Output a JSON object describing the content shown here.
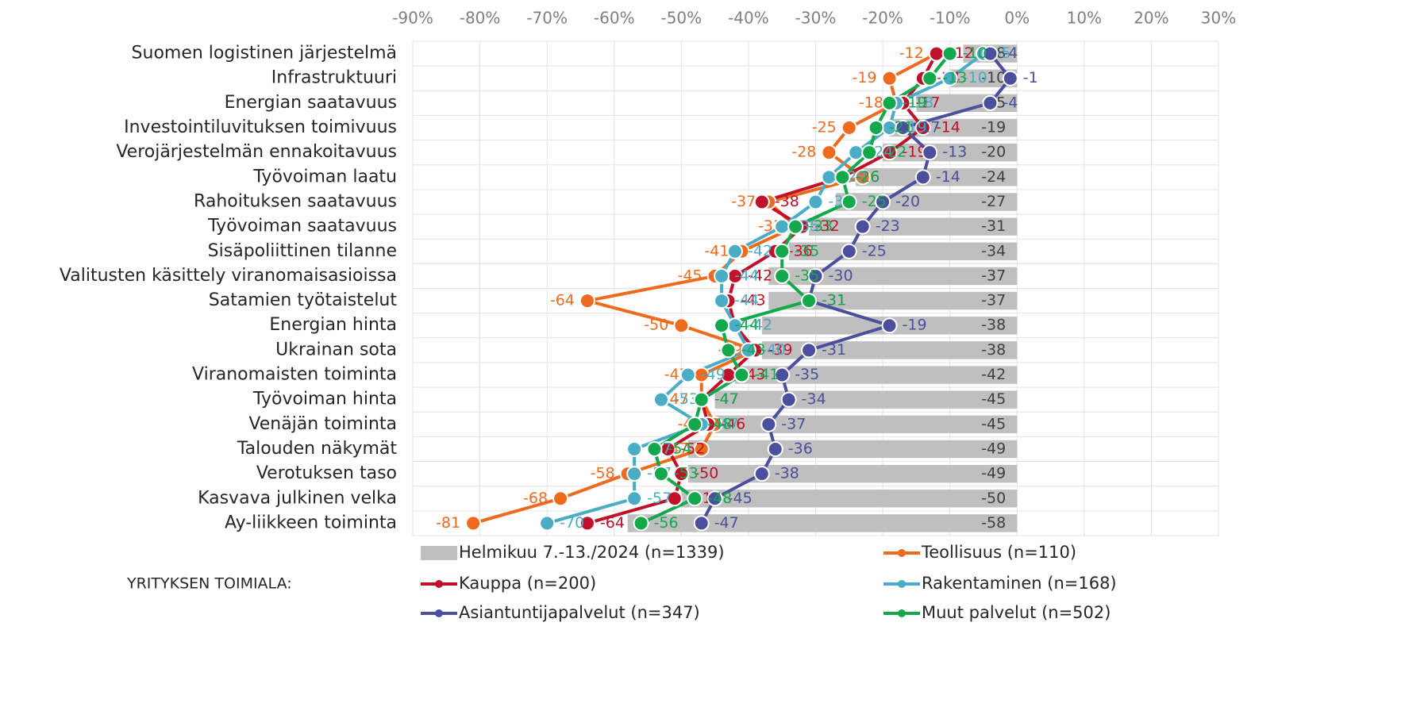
{
  "chart_data": {
    "type": "line",
    "categories": [
      "Suomen logistinen järjestelmä",
      "Infrastruktuuri",
      "Energian saatavuus",
      "Investointiluvituksen toimivuus",
      "Verojärjestelmän ennakoitavuus",
      "Työvoiman laatu",
      "Rahoituksen saatavuus",
      "Työvoiman saatavuus",
      "Sisäpoliittinen tilanne",
      "Valitusten käsittely viranomaisasioissa",
      "Satamien työtaistelut",
      "Energian hinta",
      "Ukrainan sota",
      "Viranomaisten toiminta",
      "Työvoiman hinta",
      "Venäjän toiminta",
      "Talouden näkymät",
      "Verotuksen taso",
      "Kasvava julkinen velka",
      "Ay-liikkeen toiminta"
    ],
    "legend_title": "YRITYKSEN TOIMIALA:",
    "series": [
      {
        "name": "Helmikuu 7.-13./2024 (n=1339)",
        "type": "bar",
        "color": "#bfbfbf",
        "label_color": "#404040",
        "values": [
          -8,
          -10,
          -15,
          -19,
          -20,
          -24,
          -27,
          -31,
          -34,
          -37,
          -37,
          -38,
          -38,
          -42,
          -45,
          -45,
          -49,
          -49,
          -50,
          -58
        ]
      },
      {
        "name": "Teollisuus (n=110)",
        "type": "line",
        "color": "#ee6a1f",
        "values": [
          -12,
          -19,
          -18,
          -25,
          -28,
          -23,
          -37,
          -33,
          -41,
          -45,
          -64,
          -50,
          -39,
          -47,
          -47,
          -45,
          -47,
          -58,
          -68,
          -81
        ]
      },
      {
        "name": "Kauppa (n=200)",
        "type": "line",
        "color": "#c0112a",
        "values": [
          -12,
          -14,
          -17,
          -14,
          -19,
          -26,
          -38,
          -32,
          -36,
          -42,
          -43,
          -42,
          -39,
          -43,
          -47,
          -46,
          -52,
          -50,
          -51,
          -64
        ]
      },
      {
        "name": "Rakentaminen (n=168)",
        "type": "line",
        "color": "#4bacc6",
        "values": [
          -5,
          -10,
          -18,
          -19,
          -24,
          -28,
          -30,
          -35,
          -42,
          -44,
          -44,
          -42,
          -40,
          -49,
          -53,
          -47,
          -57,
          -57,
          -57,
          -70
        ]
      },
      {
        "name": "Asiantuntijapalvelut (n=347)",
        "type": "line",
        "color": "#4a4f9e",
        "values": [
          -4,
          -1,
          -4,
          -17,
          -13,
          -14,
          -20,
          -23,
          -25,
          -30,
          -31,
          -19,
          -31,
          -35,
          -34,
          -37,
          -36,
          -38,
          -45,
          -47
        ]
      },
      {
        "name": "Muut palvelut (n=502)",
        "type": "line",
        "color": "#14a84c",
        "values": [
          -10,
          -13,
          -19,
          -21,
          -22,
          -26,
          -25,
          -33,
          -35,
          -35,
          -31,
          -44,
          -43,
          -41,
          -47,
          -48,
          -54,
          -53,
          -48,
          -56
        ]
      }
    ],
    "xlim": [
      -90,
      30
    ],
    "xticks": [
      {
        "value": -90,
        "label": "-90%"
      },
      {
        "value": -80,
        "label": "-80%"
      },
      {
        "value": -70,
        "label": "-70%"
      },
      {
        "value": -60,
        "label": "-60%"
      },
      {
        "value": -50,
        "label": "-50%"
      },
      {
        "value": -40,
        "label": "-40%"
      },
      {
        "value": -30,
        "label": "-30%"
      },
      {
        "value": -20,
        "label": "-20%"
      },
      {
        "value": -10,
        "label": "-10%"
      },
      {
        "value": 0,
        "label": "0%"
      },
      {
        "value": 10,
        "label": "10%"
      },
      {
        "value": 20,
        "label": "20%"
      },
      {
        "value": 30,
        "label": "30%"
      }
    ],
    "grid": true
  }
}
